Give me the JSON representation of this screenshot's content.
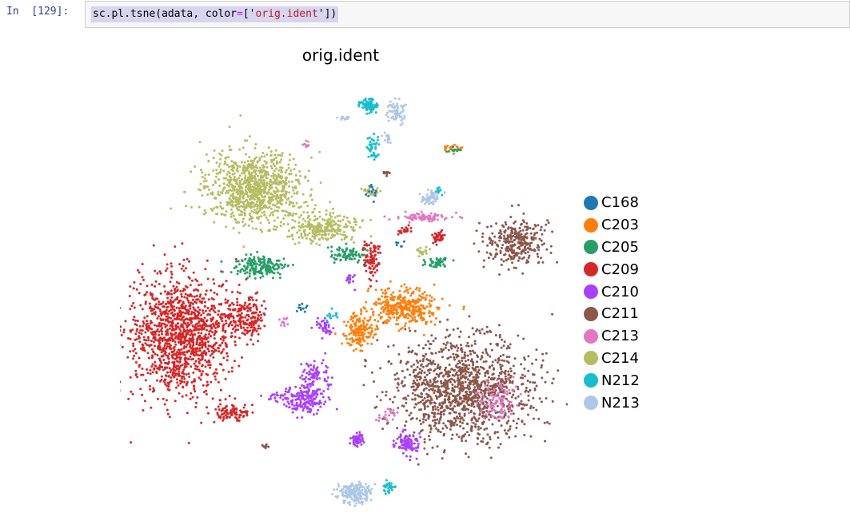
{
  "cell": {
    "prompt": "In  [129]:",
    "code": {
      "fn": "sc.pl.tsne(adata, color",
      "eq": "=",
      "open": "['",
      "arg": "orig.ident",
      "close": "'])"
    }
  },
  "plot": {
    "title": "orig.ident",
    "legend": [
      {
        "label": "C168",
        "color": "#1f77b4"
      },
      {
        "label": "C203",
        "color": "#ff7f0e"
      },
      {
        "label": "C205",
        "color": "#279e68"
      },
      {
        "label": "C209",
        "color": "#d62728"
      },
      {
        "label": "C210",
        "color": "#aa40fc"
      },
      {
        "label": "C211",
        "color": "#8c564b"
      },
      {
        "label": "C213",
        "color": "#e377c2"
      },
      {
        "label": "C214",
        "color": "#b5bd61"
      },
      {
        "label": "N212",
        "color": "#17becf"
      },
      {
        "label": "N213",
        "color": "#aec7e8"
      }
    ]
  }
}
